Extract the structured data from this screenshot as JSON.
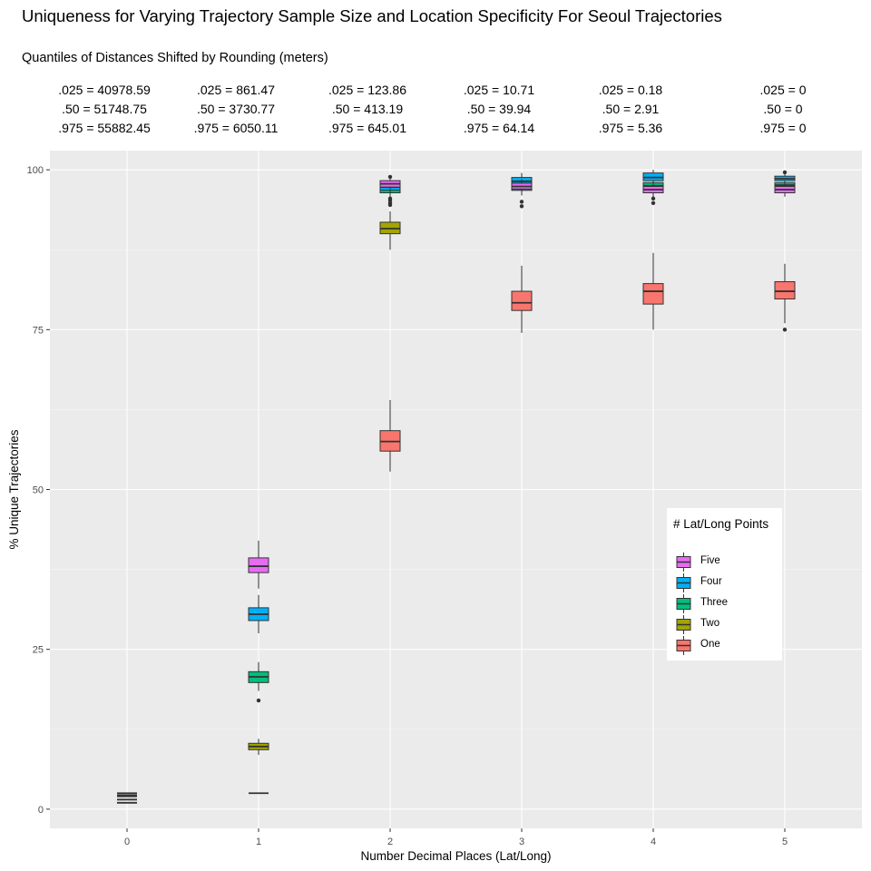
{
  "chart_data": {
    "type": "boxplot",
    "title": "Uniqueness for Varying Trajectory Sample Size and Location Specificity For Seoul Trajectories",
    "subtitle": "Quantiles of Distances Shifted by Rounding (meters)",
    "xlabel": "Number Decimal Places (Lat/Long)",
    "ylabel": "% Unique Trajectories",
    "categories": [
      "0",
      "1",
      "2",
      "3",
      "4",
      "5"
    ],
    "ylim": [
      -3,
      103
    ],
    "yticks": [
      0,
      25,
      50,
      75,
      100
    ],
    "legend_title": "# Lat/Long Points",
    "legend_position": "right",
    "quantile_rows": [
      [
        ".025 = 40978.59",
        ".50 = 51748.75",
        ".975 = 55882.45"
      ],
      [
        ".025 = 861.47",
        ".50 = 3730.77",
        ".975 = 6050.11"
      ],
      [
        ".025 = 123.86",
        ".50 = 413.19",
        ".975 = 645.01"
      ],
      [
        ".025 = 10.71",
        ".50 = 39.94",
        ".975 = 64.14"
      ],
      [
        ".025 = 0.18",
        ".50 = 2.91",
        ".975 = 5.36"
      ],
      [
        ".025 = 0",
        ".50 = 0",
        ".975 = 0"
      ]
    ],
    "series": [
      {
        "name": "One",
        "color": "#F8766D",
        "boxes": [
          {
            "x": 0,
            "whisker_low": 1.0,
            "q1": 1.0,
            "median": 1.0,
            "q3": 1.0,
            "whisker_high": 1.0,
            "outliers": []
          },
          {
            "x": 1,
            "whisker_low": 2.5,
            "q1": 2.5,
            "median": 2.5,
            "q3": 2.5,
            "whisker_high": 2.5,
            "outliers": []
          },
          {
            "x": 2,
            "whisker_low": 52.8,
            "q1": 56.0,
            "median": 57.5,
            "q3": 59.2,
            "whisker_high": 64.0,
            "outliers": []
          },
          {
            "x": 3,
            "whisker_low": 74.5,
            "q1": 78.0,
            "median": 79.2,
            "q3": 81.0,
            "whisker_high": 85.0,
            "outliers": []
          },
          {
            "x": 4,
            "whisker_low": 75.0,
            "q1": 79.0,
            "median": 81.0,
            "q3": 82.2,
            "whisker_high": 87.0,
            "outliers": []
          },
          {
            "x": 5,
            "whisker_low": 76.0,
            "q1": 79.8,
            "median": 81.0,
            "q3": 82.5,
            "whisker_high": 85.3,
            "outliers": [
              75.0
            ]
          }
        ]
      },
      {
        "name": "Two",
        "color": "#A3A500",
        "boxes": [
          {
            "x": 0,
            "whisker_low": 1.5,
            "q1": 1.5,
            "median": 1.5,
            "q3": 1.5,
            "whisker_high": 1.5,
            "outliers": []
          },
          {
            "x": 1,
            "whisker_low": 8.5,
            "q1": 9.3,
            "median": 9.8,
            "q3": 10.3,
            "whisker_high": 11.0,
            "outliers": []
          },
          {
            "x": 2,
            "whisker_low": 87.5,
            "q1": 90.0,
            "median": 90.8,
            "q3": 91.8,
            "whisker_high": 93.5,
            "outliers": []
          },
          {
            "x": 3,
            "whisker_low": 96.0,
            "q1": 96.8,
            "median": 97.2,
            "q3": 97.7,
            "whisker_high": 98.3,
            "outliers": []
          },
          {
            "x": 4,
            "whisker_low": 95.5,
            "q1": 96.8,
            "median": 97.2,
            "q3": 97.8,
            "whisker_high": 98.5,
            "outliers": []
          },
          {
            "x": 5,
            "whisker_low": 96.0,
            "q1": 96.8,
            "median": 97.2,
            "q3": 97.8,
            "whisker_high": 98.5,
            "outliers": []
          }
        ]
      },
      {
        "name": "Three",
        "color": "#00BF7D",
        "boxes": [
          {
            "x": 0,
            "whisker_low": 2.0,
            "q1": 2.0,
            "median": 2.0,
            "q3": 2.0,
            "whisker_high": 2.0,
            "outliers": []
          },
          {
            "x": 1,
            "whisker_low": 18.5,
            "q1": 19.8,
            "median": 20.7,
            "q3": 21.5,
            "whisker_high": 23.0,
            "outliers": [
              17.0
            ]
          },
          {
            "x": 2,
            "whisker_low": 95.0,
            "q1": 96.4,
            "median": 97.0,
            "q3": 97.5,
            "whisker_high": 98.3,
            "outliers": [
              94.5,
              94.8,
              95.2
            ]
          },
          {
            "x": 3,
            "whisker_low": 96.0,
            "q1": 96.8,
            "median": 97.3,
            "q3": 97.8,
            "whisker_high": 98.5,
            "outliers": []
          },
          {
            "x": 4,
            "whisker_low": 96.0,
            "q1": 97.0,
            "median": 97.5,
            "q3": 98.0,
            "whisker_high": 98.5,
            "outliers": []
          },
          {
            "x": 5,
            "whisker_low": 96.5,
            "q1": 97.0,
            "median": 97.6,
            "q3": 98.0,
            "whisker_high": 98.5,
            "outliers": []
          }
        ]
      },
      {
        "name": "Four",
        "color": "#00B0F6",
        "boxes": [
          {
            "x": 0,
            "whisker_low": 2.2,
            "q1": 2.2,
            "median": 2.2,
            "q3": 2.2,
            "whisker_high": 2.2,
            "outliers": []
          },
          {
            "x": 1,
            "whisker_low": 27.5,
            "q1": 29.5,
            "median": 30.5,
            "q3": 31.5,
            "whisker_high": 33.5,
            "outliers": []
          },
          {
            "x": 2,
            "whisker_low": 95.5,
            "q1": 96.8,
            "median": 97.3,
            "q3": 97.8,
            "whisker_high": 98.5,
            "outliers": [
              95.5
            ]
          },
          {
            "x": 3,
            "whisker_low": 97.0,
            "q1": 97.8,
            "median": 98.2,
            "q3": 98.8,
            "whisker_high": 99.5,
            "outliers": [
              94.3,
              95.0
            ]
          },
          {
            "x": 4,
            "whisker_low": 97.5,
            "q1": 98.3,
            "median": 98.8,
            "q3": 99.5,
            "whisker_high": 100.0,
            "outliers": [
              94.8,
              95.5
            ]
          },
          {
            "x": 5,
            "whisker_low": 98.0,
            "q1": 98.3,
            "median": 98.6,
            "q3": 99.0,
            "whisker_high": 99.3,
            "outliers": [
              99.6
            ]
          }
        ]
      },
      {
        "name": "Five",
        "color": "#E76BF3",
        "boxes": [
          {
            "x": 0,
            "whisker_low": 2.5,
            "q1": 2.5,
            "median": 2.5,
            "q3": 2.5,
            "whisker_high": 2.5,
            "outliers": []
          },
          {
            "x": 1,
            "whisker_low": 34.5,
            "q1": 37.0,
            "median": 38.0,
            "q3": 39.3,
            "whisker_high": 42.0,
            "outliers": []
          },
          {
            "x": 2,
            "whisker_low": 96.5,
            "q1": 97.3,
            "median": 97.8,
            "q3": 98.3,
            "whisker_high": 98.8,
            "outliers": [
              98.9
            ]
          },
          {
            "x": 3,
            "whisker_low": 96.5,
            "q1": 97.0,
            "median": 97.4,
            "q3": 97.9,
            "whisker_high": 98.5,
            "outliers": []
          },
          {
            "x": 4,
            "whisker_low": 95.8,
            "q1": 96.4,
            "median": 96.9,
            "q3": 97.4,
            "whisker_high": 98.0,
            "outliers": []
          },
          {
            "x": 5,
            "whisker_low": 95.8,
            "q1": 96.4,
            "median": 96.9,
            "q3": 97.4,
            "whisker_high": 98.0,
            "outliers": []
          }
        ]
      }
    ]
  }
}
